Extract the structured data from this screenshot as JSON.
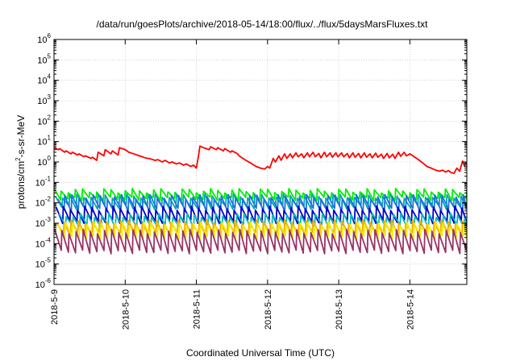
{
  "chart_data": {
    "type": "line",
    "title": "/data/run/goesPlots/archive/2018-05-14/18:00/flux/../flux/5daysMarsFluxes.txt",
    "xlabel": "Coordinated Universal Time (UTC)",
    "ylabel": "protons/cm²-s-sr-MeV",
    "ylabel_parts": {
      "pre": "protons/cm",
      "sup": "2",
      "post": "-s-sr-MeV"
    },
    "yscale": "log",
    "ylim_exp": [
      -6,
      6
    ],
    "yticks": [
      {
        "base": "10",
        "exp": "-6"
      },
      {
        "base": "10",
        "exp": "-5"
      },
      {
        "base": "10",
        "exp": "-4"
      },
      {
        "base": "10",
        "exp": "-3"
      },
      {
        "base": "10",
        "exp": "-2"
      },
      {
        "base": "10",
        "exp": "-1"
      },
      {
        "base": "10",
        "exp": "0"
      },
      {
        "base": "10",
        "exp": "1"
      },
      {
        "base": "10",
        "exp": "2"
      },
      {
        "base": "10",
        "exp": "3"
      },
      {
        "base": "10",
        "exp": "4"
      },
      {
        "base": "10",
        "exp": "5"
      },
      {
        "base": "10",
        "exp": "6"
      }
    ],
    "xlim_days": [
      0,
      5.8
    ],
    "xticks": [
      {
        "label": "2018-5-9",
        "day": 0
      },
      {
        "label": "2018-5-10",
        "day": 1
      },
      {
        "label": "2018-5-11",
        "day": 2
      },
      {
        "label": "2018-5-12",
        "day": 3
      },
      {
        "label": "2018-5-13",
        "day": 4
      },
      {
        "label": "2018-5-14",
        "day": 5
      }
    ],
    "grid": true,
    "series": [
      {
        "color": "#ff0000",
        "x": [
          0.0,
          0.06,
          0.08,
          0.15,
          0.17,
          0.24,
          0.26,
          0.33,
          0.35,
          0.42,
          0.44,
          0.52,
          0.54,
          0.6,
          0.62,
          0.7,
          0.72,
          0.8,
          0.82,
          0.9,
          0.92,
          1.0,
          1.05,
          1.12,
          1.2,
          1.28,
          1.36,
          1.42,
          1.46,
          1.52,
          1.56,
          1.62,
          1.66,
          1.72,
          1.76,
          1.82,
          1.86,
          1.92,
          1.96,
          2.0,
          2.03,
          2.05,
          2.1,
          2.18,
          2.2,
          2.28,
          2.3,
          2.38,
          2.4,
          2.48,
          2.5,
          2.58,
          2.6,
          2.68,
          2.76,
          2.84,
          2.9,
          2.96,
          3.0,
          3.03,
          3.08,
          3.11,
          3.16,
          3.19,
          3.24,
          3.27,
          3.32,
          3.35,
          3.4,
          3.43,
          3.48,
          3.51,
          3.56,
          3.59,
          3.64,
          3.67,
          3.72,
          3.75,
          3.8,
          3.83,
          3.88,
          3.91,
          3.96,
          3.99,
          4.04,
          4.07,
          4.12,
          4.15,
          4.2,
          4.23,
          4.28,
          4.31,
          4.36,
          4.39,
          4.44,
          4.47,
          4.52,
          4.55,
          4.6,
          4.63,
          4.68,
          4.71,
          4.76,
          4.79,
          4.84,
          4.87,
          4.92,
          4.95,
          5.0,
          5.06,
          5.12,
          5.18,
          5.24,
          5.3,
          5.36,
          5.42,
          5.46,
          5.5,
          5.54,
          5.58,
          5.62,
          5.66,
          5.7,
          5.74,
          5.77
        ],
        "y": [
          5.0,
          4.0,
          4.5,
          3.0,
          3.5,
          2.5,
          3.0,
          2.2,
          2.5,
          1.8,
          2.0,
          1.5,
          1.7,
          1.2,
          3.0,
          2.0,
          4.0,
          2.5,
          3.5,
          2.2,
          5.0,
          4.0,
          3.0,
          2.5,
          2.0,
          1.6,
          1.4,
          1.2,
          1.3,
          1.0,
          1.2,
          0.9,
          1.0,
          0.8,
          0.9,
          0.7,
          0.8,
          0.6,
          0.7,
          0.5,
          2.0,
          6.0,
          5.0,
          4.0,
          5.5,
          4.0,
          5.0,
          3.5,
          4.5,
          3.0,
          3.5,
          2.5,
          2.0,
          1.3,
          0.9,
          0.6,
          0.5,
          0.45,
          0.6,
          0.5,
          1.5,
          1.0,
          2.0,
          1.2,
          2.5,
          1.5,
          2.5,
          1.6,
          2.8,
          1.8,
          2.5,
          1.6,
          2.8,
          1.8,
          3.0,
          1.8,
          2.6,
          1.6,
          3.0,
          1.8,
          2.8,
          1.7,
          2.8,
          1.8,
          2.8,
          1.8,
          2.6,
          1.6,
          2.8,
          1.7,
          2.6,
          1.6,
          2.8,
          1.7,
          2.5,
          1.6,
          2.7,
          1.7,
          2.4,
          1.5,
          2.6,
          1.6,
          2.4,
          1.5,
          3.0,
          1.9,
          3.0,
          2.0,
          2.5,
          1.8,
          1.3,
          0.9,
          0.6,
          0.5,
          0.4,
          0.35,
          0.4,
          0.32,
          0.38,
          0.3,
          0.28,
          0.5,
          0.35,
          1.1,
          0.6
        ]
      },
      {
        "color": "#00ee00",
        "sawtooth": {
          "high": 0.04,
          "low": 0.016,
          "period": 0.1,
          "phase": 0.0,
          "amp_scale": 1.0
        }
      },
      {
        "color": "#00aaaa",
        "sawtooth": {
          "high": 0.022,
          "low": 0.006,
          "period": 0.1,
          "phase": 0.02,
          "amp_scale": 1.0
        }
      },
      {
        "color": "#1f6fe6",
        "sawtooth": {
          "high": 0.02,
          "low": 0.0045,
          "period": 0.1,
          "phase": 0.05,
          "amp_scale": 1.0
        }
      },
      {
        "color": "#0000cc",
        "sawtooth": {
          "high": 0.0055,
          "low": 0.0012,
          "period": 0.1,
          "phase": 0.03,
          "amp_scale": 1.0
        }
      },
      {
        "color": "#00bbbb",
        "sawtooth": {
          "high": 0.0025,
          "low": 0.0007,
          "period": 0.1,
          "phase": 0.07,
          "amp_scale": 1.0
        }
      },
      {
        "color": "#ffaa00",
        "sawtooth": {
          "high": 0.0012,
          "low": 0.0003,
          "period": 0.1,
          "phase": 0.04,
          "amp_scale": 1.0
        }
      },
      {
        "color": "#eeee00",
        "sawtooth": {
          "high": 0.0009,
          "low": 0.0002,
          "period": 0.1,
          "phase": 0.06,
          "amp_scale": 1.0
        }
      },
      {
        "color": "#993366",
        "sawtooth": {
          "high": 0.0004,
          "low": 4e-05,
          "period": 0.1,
          "phase": 0.01,
          "amp_scale": 1.0
        }
      }
    ]
  }
}
